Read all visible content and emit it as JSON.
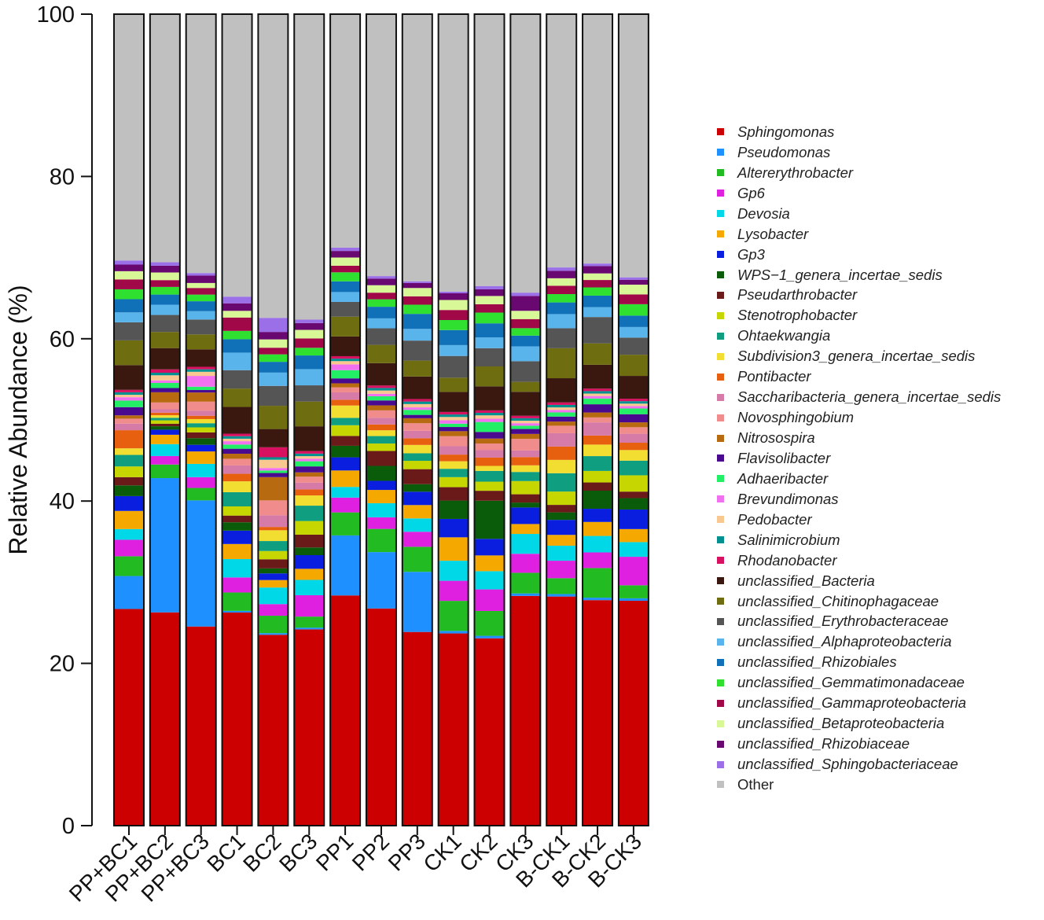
{
  "chart_data": {
    "type": "bar",
    "stacked": true,
    "ylabel": "Relative Abundance (%)",
    "xlabel": "",
    "ylim": [
      0,
      100
    ],
    "yticks": [
      0,
      20,
      40,
      60,
      80,
      100
    ],
    "categories": [
      "PP+BC1",
      "PP+BC2",
      "PP+BC3",
      "BC1",
      "BC2",
      "BC3",
      "PP1",
      "PP2",
      "PP3",
      "CK1",
      "CK2",
      "CK3",
      "B-CK1",
      "B-CK2",
      "B-CK3"
    ],
    "legend_position": "right",
    "grid": false,
    "series": [
      {
        "name": "Sphingomonas",
        "color": "#cc0000",
        "values": [
          26.3,
          25.1,
          24.0,
          25.5,
          23.0,
          23.0,
          28.0,
          26.2,
          23.2,
          23.0,
          22.6,
          27.8,
          27.5,
          27.4,
          27.6
        ]
      },
      {
        "name": "Pseudomonas",
        "color": "#1e90ff",
        "values": [
          4.0,
          15.8,
          15.2,
          0.2,
          0.2,
          0.2,
          7.3,
          6.8,
          7.2,
          0.3,
          0.3,
          0.3,
          0.3,
          0.3,
          0.3
        ]
      },
      {
        "name": "Altererythrobacter",
        "color": "#22bb22",
        "values": [
          2.4,
          1.6,
          1.5,
          2.2,
          2.1,
          1.3,
          2.8,
          2.8,
          3.0,
          3.6,
          3.0,
          2.5,
          1.9,
          3.6,
          1.6
        ]
      },
      {
        "name": "Gp6",
        "color": "#e020e0",
        "values": [
          2.0,
          1.0,
          1.3,
          1.8,
          1.4,
          2.5,
          1.8,
          1.4,
          1.8,
          2.4,
          2.6,
          2.3,
          2.1,
          1.9,
          3.5
        ]
      },
      {
        "name": "Devosia",
        "color": "#00d8e8",
        "values": [
          1.3,
          1.4,
          1.6,
          2.2,
          2.0,
          1.8,
          1.3,
          1.7,
          1.6,
          2.4,
          2.2,
          2.4,
          1.8,
          2.0,
          1.8
        ]
      },
      {
        "name": "Lysobacter",
        "color": "#f5a800",
        "values": [
          2.2,
          1.1,
          1.5,
          1.8,
          0.9,
          1.3,
          2.0,
          1.6,
          1.6,
          2.8,
          1.9,
          1.2,
          1.3,
          1.7,
          1.6
        ]
      },
      {
        "name": "Gp3",
        "color": "#0a1ee0",
        "values": [
          1.8,
          0.6,
          0.8,
          1.6,
          0.8,
          1.6,
          1.6,
          1.1,
          1.6,
          2.2,
          2.0,
          2.0,
          1.8,
          1.6,
          2.4
        ]
      },
      {
        "name": "WPS−1_genera_incertae_sedis",
        "color": "#0a5c0a",
        "values": [
          1.3,
          0.4,
          0.8,
          1.0,
          0.6,
          0.9,
          1.4,
          1.8,
          0.9,
          2.2,
          4.6,
          0.6,
          0.9,
          2.2,
          1.4
        ]
      },
      {
        "name": "Pseudarthrobacter",
        "color": "#6b1a1a",
        "values": [
          1.0,
          0.3,
          0.7,
          0.8,
          1.1,
          1.5,
          1.2,
          1.8,
          1.8,
          1.6,
          1.2,
          1.0,
          0.9,
          1.0,
          0.8
        ]
      },
      {
        "name": "Stenotrophobacter",
        "color": "#c5d600",
        "values": [
          1.3,
          0.4,
          0.6,
          1.1,
          1.0,
          1.6,
          1.3,
          0.9,
          1.0,
          1.2,
          1.1,
          1.6,
          1.6,
          1.4,
          2.0
        ]
      },
      {
        "name": "Ohtaekwangia",
        "color": "#0f9e80",
        "values": [
          1.4,
          0.3,
          0.5,
          1.7,
          1.2,
          1.8,
          0.9,
          0.9,
          0.9,
          1.0,
          1.3,
          1.1,
          2.2,
          1.8,
          1.8
        ]
      },
      {
        "name": "Subdivision3_genera_incertae_sedis",
        "color": "#f2de30",
        "values": [
          0.8,
          0.3,
          0.5,
          1.3,
          1.3,
          1.2,
          1.5,
          0.7,
          1.0,
          0.9,
          0.6,
          0.8,
          1.6,
          1.4,
          1.3
        ]
      },
      {
        "name": "Pontibacter",
        "color": "#e66010",
        "values": [
          2.2,
          0.3,
          0.4,
          0.9,
          0.4,
          0.7,
          0.7,
          0.7,
          0.8,
          0.8,
          1.0,
          1.0,
          1.6,
          1.1,
          0.9
        ]
      },
      {
        "name": "Saccharibacteria_genera_incertae_sedis",
        "color": "#d67aa8",
        "values": [
          0.8,
          0.4,
          0.6,
          1.0,
          1.4,
          0.8,
          0.9,
          0.8,
          0.9,
          1.0,
          0.9,
          0.8,
          1.6,
          1.6,
          1.1
        ]
      },
      {
        "name": "Novosphingobium",
        "color": "#f08c8c",
        "values": [
          0.6,
          0.8,
          1.1,
          0.8,
          1.8,
          0.7,
          0.6,
          0.9,
          0.9,
          1.2,
          0.8,
          1.4,
          0.9,
          0.6,
          0.8
        ]
      },
      {
        "name": "Nitrosospira",
        "color": "#b86a10",
        "values": [
          0.4,
          1.2,
          1.1,
          0.6,
          2.8,
          0.5,
          0.5,
          0.6,
          0.6,
          0.6,
          0.6,
          0.6,
          0.5,
          0.6,
          0.6
        ]
      },
      {
        "name": "Flavisolibacter",
        "color": "#4a0a90",
        "values": [
          1.0,
          0.5,
          0.3,
          0.6,
          0.5,
          0.7,
          0.6,
          0.6,
          0.4,
          0.5,
          0.8,
          0.6,
          0.6,
          1.0,
          1.0
        ]
      },
      {
        "name": "Adhaeribacter",
        "color": "#22ee66",
        "values": [
          0.8,
          0.6,
          0.4,
          0.5,
          0.3,
          0.6,
          1.0,
          0.5,
          0.6,
          0.4,
          1.2,
          0.4,
          0.5,
          0.7,
          0.7
        ]
      },
      {
        "name": "Brevundimonas",
        "color": "#f070f0",
        "values": [
          0.4,
          0.3,
          1.3,
          0.4,
          0.3,
          0.3,
          0.7,
          0.3,
          0.3,
          0.4,
          0.4,
          0.3,
          0.3,
          0.3,
          0.3
        ]
      },
      {
        "name": "Pedobacter",
        "color": "#f8c890",
        "values": [
          0.3,
          0.6,
          0.5,
          0.3,
          1.0,
          0.3,
          0.4,
          0.4,
          0.4,
          0.4,
          0.4,
          0.3,
          0.3,
          0.3,
          0.3
        ]
      },
      {
        "name": "Salinimicrobium",
        "color": "#009090",
        "values": [
          0.3,
          0.3,
          0.3,
          0.3,
          0.3,
          0.3,
          0.3,
          0.3,
          0.3,
          0.3,
          0.3,
          0.3,
          0.3,
          0.3,
          0.3
        ]
      },
      {
        "name": "Rhodanobacter",
        "color": "#d81060",
        "values": [
          0.3,
          0.4,
          0.3,
          0.3,
          1.2,
          0.3,
          0.3,
          0.3,
          0.3,
          0.3,
          0.3,
          0.3,
          0.3,
          0.3,
          0.3
        ]
      },
      {
        "name": "unclassified_Bacteria",
        "color": "#3a1810",
        "values": [
          3.0,
          2.5,
          2.1,
          3.2,
          2.2,
          2.9,
          2.4,
          2.7,
          2.7,
          2.4,
          2.9,
          2.9,
          2.9,
          2.9,
          2.8
        ]
      },
      {
        "name": "unclassified_Chitinophagaceae",
        "color": "#6e6e10",
        "values": [
          3.0,
          1.9,
          1.8,
          2.2,
          2.8,
          2.9,
          2.4,
          2.2,
          1.9,
          1.7,
          2.4,
          1.2,
          3.6,
          2.6,
          2.6
        ]
      },
      {
        "name": "unclassified_Erythrobacteraceae",
        "color": "#555555",
        "values": [
          2.2,
          2.0,
          1.8,
          2.2,
          2.4,
          1.9,
          1.8,
          2.0,
          2.4,
          2.6,
          2.2,
          2.5,
          2.4,
          3.2,
          2.1
        ]
      },
      {
        "name": "unclassified_Alphaproteobacteria",
        "color": "#5ab4ec",
        "values": [
          1.2,
          1.2,
          1.0,
          2.1,
          1.6,
          1.9,
          1.2,
          1.2,
          1.4,
          1.3,
          1.3,
          1.8,
          1.7,
          1.2,
          1.3
        ]
      },
      {
        "name": "unclassified_Rhizobiales",
        "color": "#1070b8",
        "values": [
          1.6,
          1.2,
          1.2,
          1.6,
          1.3,
          1.6,
          1.3,
          1.4,
          1.8,
          1.8,
          1.7,
          1.3,
          1.4,
          1.4,
          1.4
        ]
      },
      {
        "name": "unclassified_Gemmatimonadaceae",
        "color": "#30e030",
        "values": [
          1.2,
          0.9,
          0.8,
          1.0,
          0.9,
          0.9,
          1.1,
          0.9,
          1.1,
          1.2,
          1.3,
          0.9,
          1.0,
          1.0,
          1.4
        ]
      },
      {
        "name": "unclassified_Gammaproteobacteria",
        "color": "#a00848",
        "values": [
          1.2,
          0.8,
          0.8,
          1.6,
          0.8,
          1.1,
          0.8,
          0.8,
          1.0,
          1.2,
          1.0,
          1.1,
          1.0,
          0.9,
          1.2
        ]
      },
      {
        "name": "unclassified_Betaproteobacteria",
        "color": "#d8f898",
        "values": [
          1.0,
          0.9,
          0.6,
          0.8,
          1.0,
          1.0,
          1.0,
          0.9,
          1.0,
          1.2,
          1.0,
          1.0,
          0.9,
          0.8,
          1.2
        ]
      },
      {
        "name": "unclassified_Rhizobiaceae",
        "color": "#680870",
        "values": [
          0.8,
          0.8,
          0.9,
          0.9,
          0.9,
          0.8,
          0.8,
          0.8,
          0.6,
          0.8,
          0.8,
          1.8,
          0.9,
          0.9,
          0.6
        ]
      },
      {
        "name": "unclassified_Sphingobacteriaceae",
        "color": "#9b6fe8",
        "values": [
          0.5,
          0.4,
          0.3,
          0.8,
          1.7,
          0.4,
          0.4,
          0.3,
          0.2,
          0.2,
          0.4,
          0.4,
          0.4,
          0.3,
          0.3
        ]
      },
      {
        "name": "Other",
        "color": "#c0c0c0",
        "values": [
          29.9,
          29.2,
          31.2,
          33.8,
          36.6,
          35.8,
          28.4,
          31.6,
          32.0,
          33.2,
          32.8,
          33.7,
          30.4,
          30.3,
          32.3
        ]
      }
    ]
  }
}
